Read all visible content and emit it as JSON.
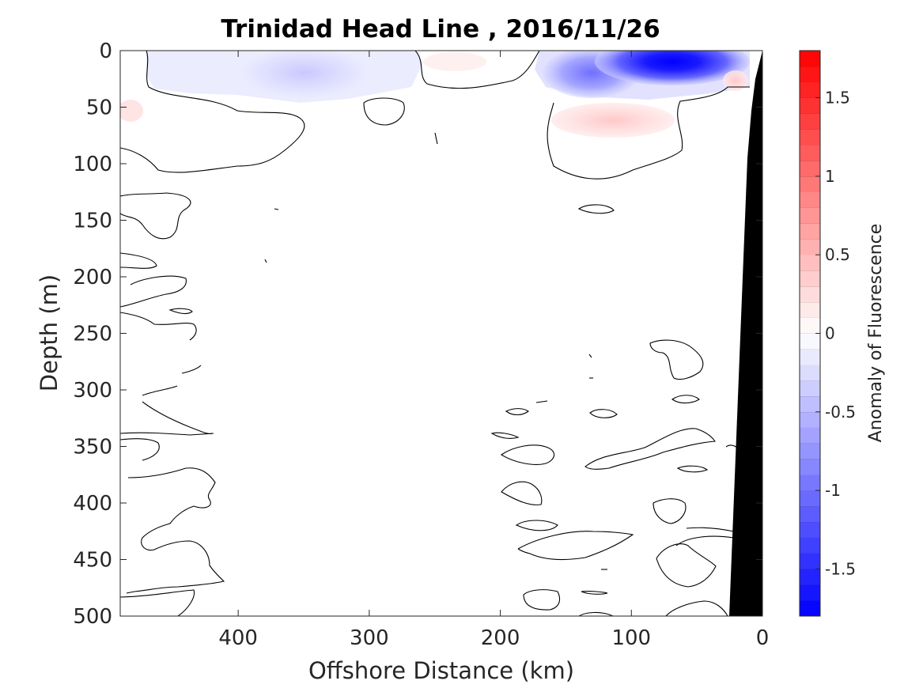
{
  "chart_data": {
    "type": "contour",
    "title": "Trinidad Head Line , 2016/11/26",
    "xlabel": "Offshore Distance (km)",
    "ylabel": "Depth (m)",
    "colorbar_label": "Anomaly of Fluorescence",
    "xlim": [
      490,
      0
    ],
    "ylim": [
      500,
      0
    ],
    "x_ticks": [
      400,
      300,
      200,
      100,
      0
    ],
    "y_ticks": [
      0,
      50,
      100,
      150,
      200,
      250,
      300,
      350,
      400,
      450,
      500
    ],
    "colorbar": {
      "range": [
        -1.8,
        1.8
      ],
      "ticks": [
        -1.5,
        -1,
        -0.5,
        0,
        0.5,
        1,
        1.5
      ],
      "tick_labels": [
        "-1.5",
        "-1",
        "-0.5",
        "0",
        "0.5",
        "1",
        "1.5"
      ],
      "levels": 36,
      "colormap": "blue-white-red",
      "low_color": "#0000ff",
      "high_color": "#ff0000"
    },
    "features": [
      {
        "label": "strong negative anomaly",
        "x": [
          100,
          10
        ],
        "depth": [
          0,
          15
        ],
        "value": -1.6
      },
      {
        "label": "moderate negative anomaly",
        "x": [
          150,
          100
        ],
        "depth": [
          0,
          35
        ],
        "value": -0.8
      },
      {
        "label": "weak negative anomaly",
        "x": [
          390,
          320
        ],
        "depth": [
          5,
          30
        ],
        "value": -0.3
      },
      {
        "label": "weak positive anomaly",
        "x": [
          150,
          80
        ],
        "depth": [
          45,
          75
        ],
        "value": 0.15
      },
      {
        "label": "weak positive anomaly",
        "x": [
          30,
          15
        ],
        "depth": [
          15,
          35
        ],
        "value": 0.15
      },
      {
        "label": "weak positive anomaly",
        "x": [
          490,
          470
        ],
        "depth": [
          45,
          60
        ],
        "value": 0.1
      },
      {
        "label": "weak positive anomaly",
        "x": [
          270,
          240
        ],
        "depth": [
          0,
          15
        ],
        "value": 0.1
      }
    ],
    "bathymetry_color": "#000000"
  }
}
